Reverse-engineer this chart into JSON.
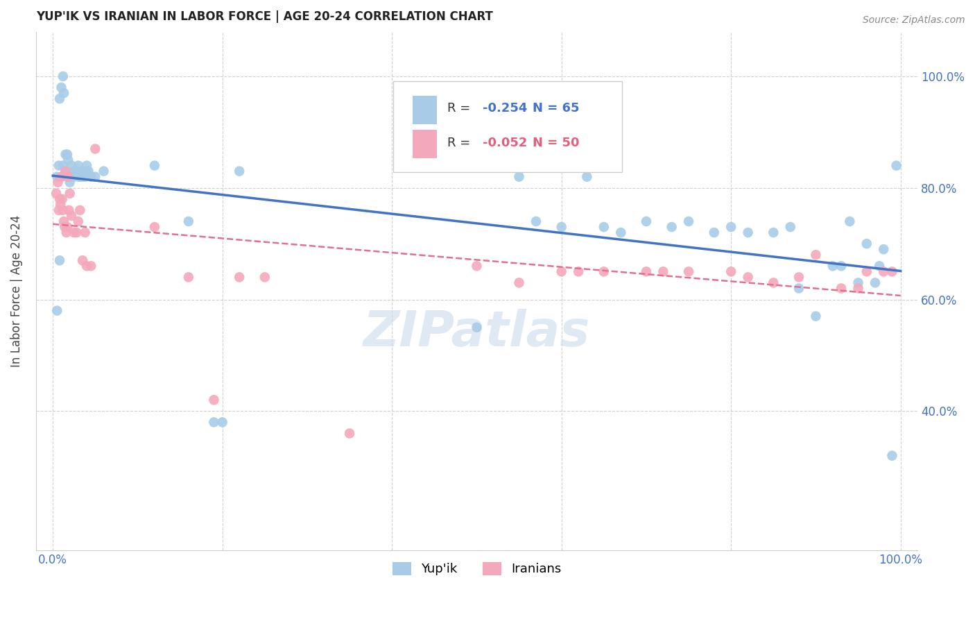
{
  "title": "YUP'IK VS IRANIAN IN LABOR FORCE | AGE 20-24 CORRELATION CHART",
  "source": "Source: ZipAtlas.com",
  "ylabel": "In Labor Force | Age 20-24",
  "xlim": [
    -0.02,
    1.02
  ],
  "ylim": [
    0.15,
    1.08
  ],
  "R_yupik": -0.254,
  "N_yupik": 65,
  "R_iranian": -0.052,
  "N_iranian": 50,
  "color_yupik": "#a8cce8",
  "color_iranian": "#f4a8bc",
  "color_line_yupik": "#4472c4",
  "color_line_iranian": "#e07090",
  "grid_color": "#d0d0d0",
  "yupik_x": [
    0.005,
    0.007,
    0.008,
    0.01,
    0.012,
    0.013,
    0.015,
    0.017,
    0.018,
    0.02,
    0.022,
    0.025,
    0.028,
    0.03,
    0.032,
    0.035,
    0.038,
    0.04,
    0.042,
    0.045,
    0.005,
    0.008,
    0.01,
    0.012,
    0.015,
    0.018,
    0.02,
    0.025,
    0.03,
    0.035,
    0.04,
    0.05,
    0.06,
    0.12,
    0.16,
    0.19,
    0.2,
    0.22,
    0.5,
    0.55,
    0.57,
    0.6,
    0.63,
    0.65,
    0.67,
    0.7,
    0.73,
    0.75,
    0.78,
    0.8,
    0.82,
    0.85,
    0.87,
    0.88,
    0.9,
    0.92,
    0.93,
    0.94,
    0.95,
    0.96,
    0.97,
    0.975,
    0.98,
    0.99,
    0.995
  ],
  "yupik_y": [
    0.82,
    0.84,
    0.96,
    0.98,
    1.0,
    0.97,
    0.86,
    0.86,
    0.85,
    0.82,
    0.84,
    0.83,
    0.83,
    0.84,
    0.82,
    0.83,
    0.82,
    0.84,
    0.83,
    0.82,
    0.58,
    0.67,
    0.82,
    0.84,
    0.83,
    0.82,
    0.81,
    0.82,
    0.82,
    0.82,
    0.83,
    0.82,
    0.83,
    0.84,
    0.74,
    0.38,
    0.38,
    0.83,
    0.55,
    0.82,
    0.74,
    0.73,
    0.82,
    0.73,
    0.72,
    0.74,
    0.73,
    0.74,
    0.72,
    0.73,
    0.72,
    0.72,
    0.73,
    0.62,
    0.57,
    0.66,
    0.66,
    0.74,
    0.63,
    0.7,
    0.63,
    0.66,
    0.69,
    0.32,
    0.84
  ],
  "iranian_x": [
    0.004,
    0.006,
    0.007,
    0.008,
    0.009,
    0.01,
    0.011,
    0.012,
    0.013,
    0.014,
    0.015,
    0.016,
    0.017,
    0.018,
    0.019,
    0.02,
    0.022,
    0.025,
    0.028,
    0.03,
    0.032,
    0.035,
    0.038,
    0.04,
    0.045,
    0.05,
    0.12,
    0.16,
    0.19,
    0.22,
    0.25,
    0.35,
    0.5,
    0.55,
    0.6,
    0.62,
    0.65,
    0.7,
    0.72,
    0.75,
    0.8,
    0.82,
    0.85,
    0.88,
    0.9,
    0.93,
    0.95,
    0.96,
    0.98,
    0.99
  ],
  "iranian_y": [
    0.79,
    0.81,
    0.76,
    0.78,
    0.77,
    0.82,
    0.78,
    0.76,
    0.74,
    0.73,
    0.83,
    0.72,
    0.73,
    0.82,
    0.76,
    0.79,
    0.75,
    0.72,
    0.72,
    0.74,
    0.76,
    0.67,
    0.72,
    0.66,
    0.66,
    0.87,
    0.73,
    0.64,
    0.42,
    0.64,
    0.64,
    0.36,
    0.66,
    0.63,
    0.65,
    0.65,
    0.65,
    0.65,
    0.65,
    0.65,
    0.65,
    0.64,
    0.63,
    0.64,
    0.68,
    0.62,
    0.62,
    0.65,
    0.65,
    0.65
  ]
}
